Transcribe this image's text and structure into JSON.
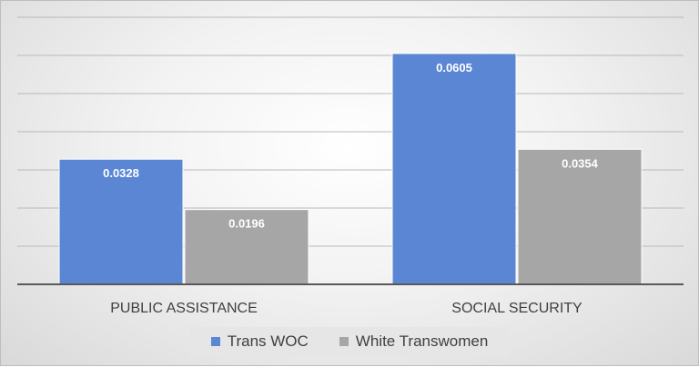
{
  "colors": {
    "series_trans_woc": "#5b86d4",
    "series_white_transwomen": "#a6a6a6",
    "gridline": "#b8b8b8",
    "axis": "#595959",
    "label_text": "#ffffff",
    "category_text": "#404040"
  },
  "chart_data": {
    "type": "bar",
    "title": "",
    "xlabel": "",
    "ylabel": "",
    "categories": [
      "PUBLIC ASSISTANCE",
      "SOCIAL SECURITY"
    ],
    "series": [
      {
        "name": "Trans WOC",
        "values": [
          0.0328,
          0.0605
        ],
        "labels": [
          "0.0328",
          "0.0605"
        ]
      },
      {
        "name": "White Transwomen",
        "values": [
          0.0196,
          0.0354
        ],
        "labels": [
          "0.0196",
          "0.0354"
        ]
      }
    ],
    "ylim": [
      0,
      0.07
    ],
    "ytick_step": 0.01,
    "grid": true,
    "legend_position": "bottom"
  }
}
